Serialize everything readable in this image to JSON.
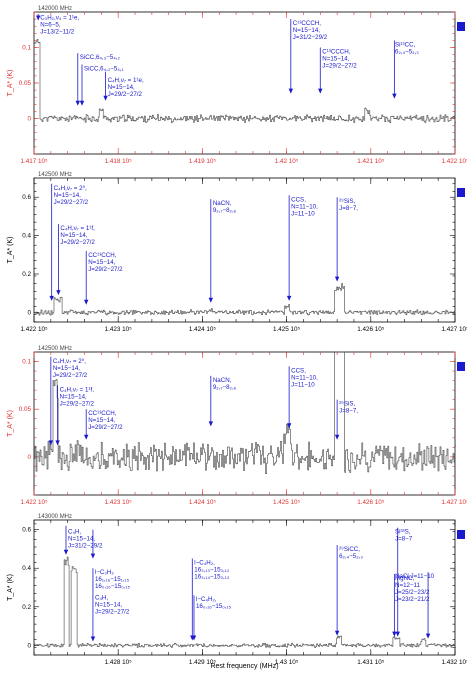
{
  "chart_data": {
    "type": "line",
    "xlabel": "Rest frequency (MHz)",
    "ylabel": "T_A* (K)",
    "panels": [
      {
        "top_freq_label": "142000 MHz",
        "xlim": [
          141700,
          142200
        ],
        "ylim": [
          -0.05,
          0.15
        ],
        "yticks": [
          0,
          0.05,
          0.1
        ],
        "ytick_labels": [
          "0",
          "0.05",
          "0.1"
        ],
        "xticks": [
          141700,
          141800,
          141900,
          142000,
          142100,
          142200
        ],
        "xtick_labels": [
          "1.417 10⁵",
          "1.418 10⁵",
          "1.419 10⁵",
          "1.42 10⁵",
          "1.421 10⁵",
          "1.422 10⁵"
        ],
        "axis_color": "#e03030",
        "marker_color": "#1a1acc",
        "seed": 11,
        "noise": 0.004,
        "features": [
          {
            "x": 141703,
            "w": 3,
            "h": 0.115
          },
          {
            "x": 141779,
            "w": 2,
            "h": 0.012
          },
          {
            "x": 142095,
            "w": 3,
            "h": 0.012
          }
        ],
        "annotations": [
          {
            "lines": [
              "C₃H₂,ν₄ = 1¹e,",
              "N=6−5,",
              "J=13/2−11/2"
            ],
            "x": 141705,
            "ty": 0.148,
            "ay": 0.138
          },
          {
            "lines": [
              "SiCC,6₄,₃−5₄,₂"
            ],
            "x": 141752,
            "ty": 0.092,
            "ay": 0.018
          },
          {
            "lines": [
              "SiCC,6₄,₂−5₄,₁"
            ],
            "x": 141757,
            "ty": 0.076,
            "ay": 0.018
          },
          {
            "lines": [
              "C₄H,ν₇ = 1¹e,",
              "N=15−14,",
              "J=29/2−27/2"
            ],
            "x": 141785,
            "ty": 0.06,
            "ay": 0.025
          },
          {
            "lines": [
              "C¹³CCCH,",
              "N=15−14,",
              "J=31/2−29/2"
            ],
            "x": 142005,
            "ty": 0.14,
            "ay": 0.035
          },
          {
            "lines": [
              "C¹³CCCH,",
              "N=15−14,",
              "J=29/2−27/2"
            ],
            "x": 142040,
            "ty": 0.1,
            "ay": 0.035
          },
          {
            "lines": [
              "Si¹³CC,",
              "6₂,₄−5₂,₃"
            ],
            "x": 142128,
            "ty": 0.11,
            "ay": 0.028
          }
        ]
      },
      {
        "top_freq_label": "142500 MHz",
        "xlim": [
          142200,
          142700
        ],
        "ylim": [
          -0.05,
          0.7
        ],
        "yticks": [
          0,
          0.2,
          0.4,
          0.6
        ],
        "ytick_labels": [
          "0",
          "0.2",
          "0.4",
          "0.6"
        ],
        "xticks": [
          142200,
          142300,
          142400,
          142500,
          142600,
          142700
        ],
        "xtick_labels": [
          "1.422 10⁵",
          "1.423 10⁵",
          "1.424 10⁵",
          "1.425 10⁵",
          "1.426 10⁵",
          "1.427 10⁵"
        ],
        "axis_color": "#000000",
        "marker_color": "#1a1acc",
        "seed": 22,
        "noise": 0.01,
        "features": [
          {
            "x": 142228,
            "w": 5,
            "h": 0.075
          },
          {
            "x": 142562,
            "w": 6,
            "h": 0.14
          },
          {
            "x": 142500,
            "w": 3,
            "h": 0.03
          },
          {
            "x": 142410,
            "w": 3,
            "h": 0.015
          }
        ],
        "annotations": [
          {
            "lines": [
              "C₄H,ν₇ = 2⁰,",
              "N=15−14,",
              "J=29/2−27/2"
            ],
            "x": 142221,
            "ty": 0.67,
            "ay": 0.06
          },
          {
            "lines": [
              "C₄H,ν₇ = 1¹f,",
              "N=15−14,",
              "J=29/2−27/2"
            ],
            "x": 142229,
            "ty": 0.46,
            "ay": 0.09
          },
          {
            "lines": [
              "CC¹³CCH,",
              "N=15−14,",
              "J=29/2−27/2"
            ],
            "x": 142262,
            "ty": 0.32,
            "ay": 0.04
          },
          {
            "lines": [
              "NaCN,",
              "9₂,₇−8₂,₆"
            ],
            "x": 142410,
            "ty": 0.59,
            "ay": 0.05
          },
          {
            "lines": [
              "CCS,",
              "N=11−10,",
              "J=11−10"
            ],
            "x": 142503,
            "ty": 0.61,
            "ay": 0.06
          },
          {
            "lines": [
              "²⁹SiS,",
              "J=8−7,"
            ],
            "x": 142560,
            "ty": 0.6,
            "ay": 0.16
          }
        ]
      },
      {
        "top_freq_label": "142500 MHz",
        "xlim": [
          142200,
          142700
        ],
        "ylim": [
          -0.04,
          0.11
        ],
        "yticks": [
          0,
          0.05,
          0.1
        ],
        "ytick_labels": [
          "0",
          "0.05",
          "0.1"
        ],
        "xticks": [
          142200,
          142300,
          142400,
          142500,
          142600,
          142700
        ],
        "xtick_labels": [
          "1.422 10⁵",
          "1.423 10⁵",
          "1.424 10⁵",
          "1.425 10⁵",
          "1.426 10⁵",
          "1.427 10⁵"
        ],
        "axis_color": "#e03030",
        "marker_color": "#1a1acc",
        "seed": 33,
        "noise": 0.012,
        "features": [
          {
            "x": 142225,
            "w": 3,
            "h": 0.085
          },
          {
            "x": 142562,
            "w": 6,
            "h": 0.14
          },
          {
            "x": 142500,
            "w": 4,
            "h": 0.025
          }
        ],
        "annotations": [
          {
            "lines": [
              "C₄H,ν₇ = 2⁰,",
              "N=15−14,",
              "J=29/2−27/2"
            ],
            "x": 142220,
            "ty": 0.105,
            "ay": 0.012
          },
          {
            "lines": [
              "C₄H,ν₇ = 1¹f,",
              "N=15−14,",
              "J=29/2−27/2"
            ],
            "x": 142228,
            "ty": 0.075,
            "ay": 0.012
          },
          {
            "lines": [
              "CC¹³CCH,",
              "N=15−14,",
              "J=29/2−27/2"
            ],
            "x": 142262,
            "ty": 0.05,
            "ay": 0.018
          },
          {
            "lines": [
              "NaCN,",
              "9₂,₇−8₂,₆"
            ],
            "x": 142410,
            "ty": 0.085,
            "ay": 0.032
          },
          {
            "lines": [
              "CCS,",
              "N=11−10,",
              "J=11−10"
            ],
            "x": 142503,
            "ty": 0.095,
            "ay": 0.03
          },
          {
            "lines": [
              "²⁹SiS,",
              "J=8−7,"
            ],
            "x": 142560,
            "ty": 0.06,
            "ay": 0.018
          }
        ]
      },
      {
        "top_freq_label": "143000 MHz",
        "xlim": [
          142700,
          143200
        ],
        "ylim": [
          -0.05,
          0.65
        ],
        "yticks": [
          0,
          0.2,
          0.4,
          0.6
        ],
        "ytick_labels": [
          "0",
          "0.2",
          "0.4",
          "0.6"
        ],
        "xticks": [
          142800,
          142900,
          143000,
          143100
        ],
        "xtick_labels": [
          "1.428 10⁵",
          "1.429 10⁵",
          "1.43 10⁵",
          "1.431 10⁵",
          "1.432 10⁵"
        ],
        "xticks_full": [
          142800,
          142900,
          143000,
          143100,
          143200
        ],
        "axis_color": "#000000",
        "marker_color": "#1a1acc",
        "seed": 44,
        "noise": 0.008,
        "features": [
          {
            "x": 142738,
            "w": 3,
            "h": 0.46
          },
          {
            "x": 142747,
            "w": 3,
            "h": 0.44
          },
          {
            "x": 143062,
            "w": 3,
            "h": 0.045
          },
          {
            "x": 143130,
            "w": 4,
            "h": 0.04
          },
          {
            "x": 143162,
            "w": 3,
            "h": 0.03
          }
        ],
        "annotations": [
          {
            "lines": [
              "C₄H,",
              "N=15−14,",
              "J=31/2−29/2"
            ],
            "x": 142738,
            "ty": 0.61,
            "ay": 0.47
          },
          {
            "lines": [
              "l−C₃H₂",
              "16₁,₁₆−15₁,₁₅",
              "16₀,₁₆−15₀,₁₅"
            ],
            "x": 142770,
            "ty": 0.4,
            "ay": 0.02
          },
          {
            "lines": [
              "C₄H,",
              "N=15−14,",
              "J=29/2−27/2"
            ],
            "x": 142770,
            "ty": 0.27,
            "ay": 0.45
          },
          {
            "lines": [
              "l−C₄H₂,",
              "16₃,₁₃−15₃,₁₂",
              "16₃,₁₄−15₃,₁₃"
            ],
            "x": 142888,
            "ty": 0.45,
            "ay": 0.025
          },
          {
            "lines": [
              "l−C₄H₂,",
              "16₀,₁₆−15₀,₁₅"
            ],
            "x": 142890,
            "ty": 0.26,
            "ay": 0.025
          },
          {
            "lines": [
              "²⁹SiCC,",
              "6₂,₄−5₂,₃"
            ],
            "x": 143060,
            "ty": 0.52,
            "ay": 0.05
          },
          {
            "lines": [
              "MgNC,",
              "N=12−11",
              "J=25/2−23/2",
              "J=23/2−21/2"
            ],
            "x": 143128,
            "ty": 0.37,
            "ay": 0.045
          },
          {
            "lines": [
              "Si³³S,",
              "J=8−7"
            ],
            "x": 143132,
            "ty": 0.61,
            "ay": 0.045
          },
          {
            "lines": [
              "NaCl,J=11−10"
            ],
            "x": 143168,
            "ty": 0.38,
            "ay": 0.035
          }
        ]
      }
    ]
  }
}
